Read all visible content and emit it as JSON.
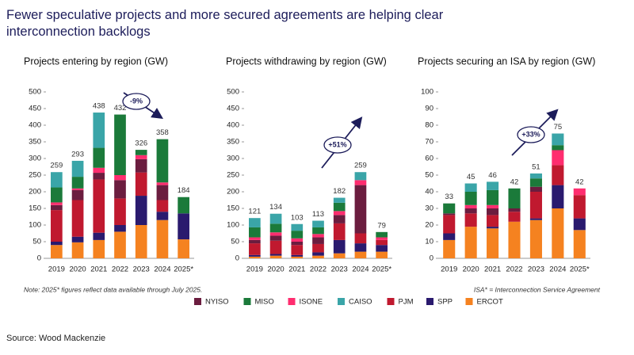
{
  "title": "Fewer speculative projects and more secured agreements are helping clear interconnection backlogs",
  "note": "Note: 2025* figures reflect data available through July 2025.",
  "isa_note": "ISA* = Interconnection Service Agreement",
  "source": "Source: Wood Mackenzie",
  "chart_data": [
    {
      "type": "bar",
      "stacked": true,
      "title": "Projects entering by region (GW)",
      "categories": [
        "2019",
        "2020",
        "2021",
        "2022",
        "2023",
        "2024",
        "2025*"
      ],
      "totals": [
        259,
        293,
        438,
        432,
        326,
        358,
        184
      ],
      "annotation": "-9%",
      "ylim": [
        0,
        500
      ],
      "yticks": [
        0,
        50,
        100,
        150,
        200,
        250,
        300,
        350,
        400,
        450,
        500
      ],
      "series": [
        {
          "name": "NYISO",
          "color": "#6b1d3f",
          "values": [
            15,
            30,
            20,
            55,
            40,
            45,
            0
          ]
        },
        {
          "name": "MISO",
          "color": "#1b7a3a",
          "values": [
            45,
            35,
            60,
            182,
            16,
            130,
            49
          ]
        },
        {
          "name": "ISONE",
          "color": "#ff2d6f",
          "values": [
            8,
            5,
            15,
            15,
            12,
            8,
            0
          ]
        },
        {
          "name": "CAISO",
          "color": "#3aa5a8",
          "values": [
            46,
            48,
            106,
            0,
            0,
            0,
            0
          ]
        },
        {
          "name": "PJM",
          "color": "#c0192f",
          "values": [
            95,
            110,
            160,
            80,
            70,
            35,
            0
          ]
        },
        {
          "name": "SPP",
          "color": "#2a1a6e",
          "values": [
            10,
            17,
            22,
            20,
            88,
            25,
            78
          ]
        },
        {
          "name": "ERCOT",
          "color": "#f58220",
          "values": [
            40,
            48,
            55,
            80,
            100,
            115,
            57
          ]
        }
      ]
    },
    {
      "type": "bar",
      "stacked": true,
      "title": "Projects withdrawing by region (GW)",
      "categories": [
        "2019",
        "2020",
        "2021",
        "2022",
        "2023",
        "2024",
        "2025*"
      ],
      "totals": [
        121,
        134,
        103,
        113,
        182,
        259,
        79
      ],
      "annotation": "+51%",
      "ylim": [
        0,
        500
      ],
      "yticks": [
        0,
        50,
        100,
        150,
        200,
        250,
        300,
        350,
        400,
        450,
        500
      ],
      "series": [
        {
          "name": "NYISO",
          "color": "#6b1d3f",
          "values": [
            10,
            15,
            10,
            20,
            25,
            145,
            0
          ]
        },
        {
          "name": "MISO",
          "color": "#1b7a3a",
          "values": [
            30,
            26,
            23,
            20,
            25,
            0,
            16
          ]
        },
        {
          "name": "ISONE",
          "color": "#ff2d6f",
          "values": [
            8,
            10,
            10,
            10,
            12,
            15,
            8
          ]
        },
        {
          "name": "CAISO",
          "color": "#3aa5a8",
          "values": [
            28,
            30,
            20,
            20,
            15,
            24,
            0
          ]
        },
        {
          "name": "PJM",
          "color": "#c0192f",
          "values": [
            35,
            40,
            30,
            25,
            50,
            30,
            15
          ]
        },
        {
          "name": "SPP",
          "color": "#2a1a6e",
          "values": [
            5,
            5,
            5,
            10,
            40,
            25,
            20
          ]
        },
        {
          "name": "ERCOT",
          "color": "#f58220",
          "values": [
            5,
            8,
            5,
            8,
            15,
            20,
            20
          ]
        }
      ]
    },
    {
      "type": "bar",
      "stacked": true,
      "title": "Projects securing an ISA by region (GW)",
      "categories": [
        "2019",
        "2020",
        "2021",
        "2022",
        "2023",
        "2024",
        "2025*"
      ],
      "totals": [
        33,
        45,
        46,
        42,
        51,
        75,
        42
      ],
      "annotation": "+33%",
      "ylim": [
        0,
        100
      ],
      "yticks": [
        0,
        10,
        20,
        30,
        40,
        50,
        60,
        70,
        80,
        90,
        100
      ],
      "series": [
        {
          "name": "NYISO",
          "color": "#6b1d3f",
          "values": [
            1,
            3,
            4,
            2,
            3,
            0,
            0
          ]
        },
        {
          "name": "MISO",
          "color": "#1b7a3a",
          "values": [
            6,
            8,
            9,
            12,
            5,
            3,
            0
          ]
        },
        {
          "name": "ISONE",
          "color": "#ff2d6f",
          "values": [
            0,
            2,
            2,
            0,
            0,
            9,
            4
          ]
        },
        {
          "name": "CAISO",
          "color": "#3aa5a8",
          "values": [
            0,
            5,
            5,
            0,
            3,
            7,
            0
          ]
        },
        {
          "name": "PJM",
          "color": "#c0192f",
          "values": [
            11,
            8,
            7,
            6,
            16,
            12,
            14
          ]
        },
        {
          "name": "SPP",
          "color": "#2a1a6e",
          "values": [
            4,
            0,
            1,
            0,
            1,
            14,
            7
          ]
        },
        {
          "name": "ERCOT",
          "color": "#f58220",
          "values": [
            11,
            19,
            18,
            22,
            23,
            30,
            17
          ]
        }
      ]
    }
  ]
}
